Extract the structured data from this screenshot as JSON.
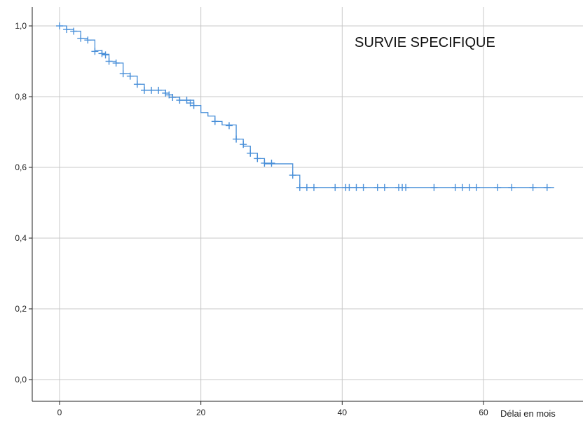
{
  "chart_data": {
    "type": "line",
    "title": "SURVIE SPECIFIQUE",
    "xlabel": "Délai en mois",
    "ylabel": "",
    "xlim": [
      -4,
      74
    ],
    "ylim": [
      -0.05,
      1.06
    ],
    "x_ticks": [
      0,
      20,
      40,
      60
    ],
    "x_tick_labels": [
      "0",
      "20",
      "40",
      "60"
    ],
    "y_ticks": [
      0.0,
      0.2,
      0.4,
      0.6,
      0.8,
      1.0
    ],
    "y_tick_labels": [
      "0,0",
      "0,2",
      "0,4",
      "0,6",
      "0,8",
      "1,0"
    ],
    "grid": true,
    "colors": {
      "series": "#4a90d9",
      "grid": "#c8c8c8",
      "axis": "#222222"
    },
    "series": [
      {
        "steps": [
          [
            0,
            1.0
          ],
          [
            1,
            0.99
          ],
          [
            2,
            0.985
          ],
          [
            3,
            0.965
          ],
          [
            4,
            0.96
          ],
          [
            5,
            0.93
          ],
          [
            6,
            0.92
          ],
          [
            7,
            0.9
          ],
          [
            8,
            0.895
          ],
          [
            9,
            0.865
          ],
          [
            10,
            0.858
          ],
          [
            11,
            0.835
          ],
          [
            12,
            0.818
          ],
          [
            15,
            0.805
          ],
          [
            16,
            0.798
          ],
          [
            17,
            0.79
          ],
          [
            19,
            0.775
          ],
          [
            20,
            0.755
          ],
          [
            21,
            0.745
          ],
          [
            22,
            0.73
          ],
          [
            23,
            0.72
          ],
          [
            25,
            0.68
          ],
          [
            26,
            0.66
          ],
          [
            27,
            0.64
          ],
          [
            28,
            0.625
          ],
          [
            29,
            0.61
          ],
          [
            33,
            0.578
          ],
          [
            34,
            0.543
          ],
          [
            70,
            0.543
          ]
        ],
        "censored": [
          [
            0,
            1.0
          ],
          [
            1,
            0.99
          ],
          [
            2,
            0.985
          ],
          [
            3,
            0.965
          ],
          [
            4,
            0.96
          ],
          [
            5,
            0.928
          ],
          [
            6,
            0.922
          ],
          [
            6.5,
            0.918
          ],
          [
            7,
            0.9
          ],
          [
            8,
            0.895
          ],
          [
            9,
            0.865
          ],
          [
            10,
            0.858
          ],
          [
            11,
            0.835
          ],
          [
            12,
            0.818
          ],
          [
            13,
            0.818
          ],
          [
            14,
            0.818
          ],
          [
            15,
            0.81
          ],
          [
            15.5,
            0.805
          ],
          [
            16,
            0.798
          ],
          [
            17,
            0.79
          ],
          [
            18,
            0.79
          ],
          [
            18.5,
            0.782
          ],
          [
            19,
            0.775
          ],
          [
            22,
            0.73
          ],
          [
            24,
            0.718
          ],
          [
            25,
            0.68
          ],
          [
            26,
            0.665
          ],
          [
            27,
            0.64
          ],
          [
            28,
            0.625
          ],
          [
            29,
            0.612
          ],
          [
            30,
            0.612
          ],
          [
            33,
            0.578
          ],
          [
            34,
            0.543
          ],
          [
            35,
            0.543
          ],
          [
            36,
            0.543
          ],
          [
            39,
            0.543
          ],
          [
            40.5,
            0.543
          ],
          [
            41,
            0.543
          ],
          [
            42,
            0.543
          ],
          [
            43,
            0.543
          ],
          [
            45,
            0.543
          ],
          [
            46,
            0.543
          ],
          [
            48,
            0.543
          ],
          [
            48.5,
            0.543
          ],
          [
            49,
            0.543
          ],
          [
            53,
            0.543
          ],
          [
            56,
            0.543
          ],
          [
            57,
            0.543
          ],
          [
            58,
            0.543
          ],
          [
            59,
            0.543
          ],
          [
            62,
            0.543
          ],
          [
            64,
            0.543
          ],
          [
            67,
            0.543
          ],
          [
            69,
            0.543
          ]
        ]
      }
    ]
  }
}
